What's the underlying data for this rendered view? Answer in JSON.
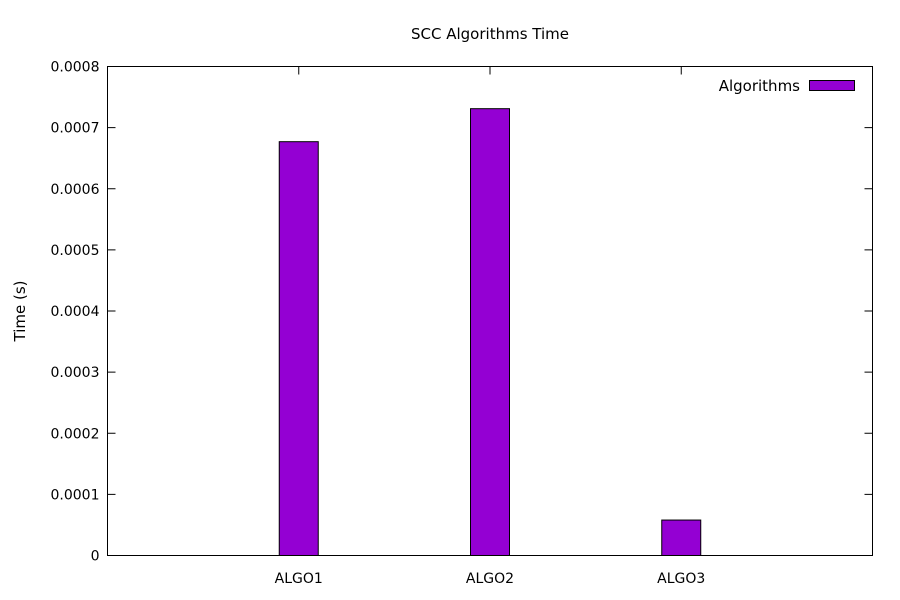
{
  "chart_data": {
    "type": "bar",
    "title": "SCC Algorithms Time",
    "xlabel": "",
    "ylabel": "Time (s)",
    "categories": [
      "ALGO1",
      "ALGO2",
      "ALGO3"
    ],
    "series": [
      {
        "name": "Algorithms",
        "values": [
          0.000677,
          0.000731,
          5.8e-05
        ],
        "color": "#9400d3"
      }
    ],
    "ylim": [
      0,
      0.0008
    ],
    "yticks": [
      "0",
      "0.0001",
      "0.0002",
      "0.0003",
      "0.0004",
      "0.0005",
      "0.0006",
      "0.0007",
      "0.0008"
    ],
    "grid": false,
    "legend_position": "top-right"
  }
}
